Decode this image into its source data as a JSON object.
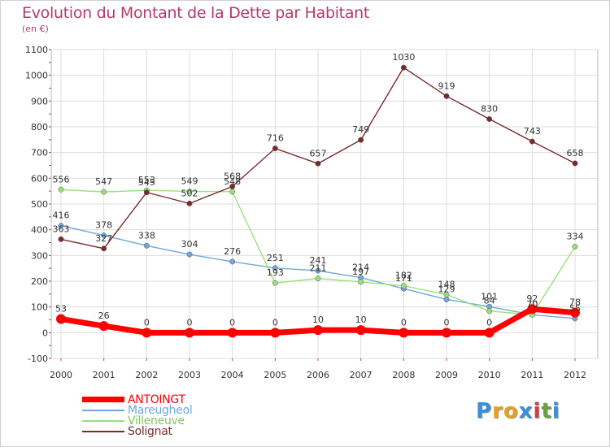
{
  "title": "Evolution du Montant de la Dette par Habitant",
  "subtitle": "(en €)",
  "logo": {
    "text": "Proxiti",
    "letters": [
      "P",
      "r",
      "o",
      "x",
      "i",
      "t",
      "i"
    ],
    "colors": [
      "#3a8fd8",
      "#e8a020",
      "#e8a020",
      "#3a8fd8",
      "#d04040",
      "#6aa040",
      "#3a8fd8"
    ]
  },
  "chart_data": {
    "type": "line",
    "title": "Evolution du Montant de la Dette par Habitant",
    "subtitle": "(en €)",
    "xlabel": "",
    "ylabel": "",
    "x": [
      "2000",
      "2001",
      "2002",
      "2003",
      "2004",
      "2005",
      "2006",
      "2007",
      "2008",
      "2009",
      "2010",
      "2011",
      "2012"
    ],
    "ylim": [
      -100,
      1100
    ],
    "yticks": [
      "-100",
      "0",
      "100",
      "200",
      "300",
      "400",
      "500",
      "600",
      "700",
      "800",
      "900",
      "1000",
      "1100"
    ],
    "grid": true,
    "legend_position": "bottom-left",
    "series": [
      {
        "name": "ANTOINGT",
        "color": "#ff0000",
        "values": [
          53,
          26,
          0,
          0,
          0,
          0,
          10,
          10,
          0,
          0,
          0,
          92,
          78
        ],
        "labels": [
          "53",
          "26",
          "0",
          "0",
          "0",
          "0",
          "10",
          "10",
          "0",
          "0",
          "0",
          "92",
          "78"
        ]
      },
      {
        "name": "Mareugheol",
        "color": "#6fa8dc",
        "values": [
          416,
          378,
          338,
          304,
          276,
          251,
          241,
          214,
          171,
          129,
          101,
          70,
          55
        ],
        "labels": [
          "416",
          "378",
          "338",
          "304",
          "276",
          "251",
          "241",
          "214",
          "171",
          "129",
          "101",
          "70",
          "55"
        ]
      },
      {
        "name": "Villeneuve",
        "color": "#99e07a",
        "values": [
          556,
          547,
          553,
          549,
          548,
          193,
          211,
          197,
          182,
          148,
          84,
          70,
          334
        ],
        "labels": [
          "556",
          "547",
          "553",
          "549",
          "548",
          "193",
          "211",
          "197",
          "182",
          "148",
          "84",
          "70",
          "334"
        ]
      },
      {
        "name": "Solignat",
        "color": "#7a2a2a",
        "values": [
          363,
          327,
          545,
          502,
          568,
          716,
          657,
          749,
          1030,
          919,
          830,
          743,
          658
        ],
        "labels": [
          "363",
          "327",
          "545",
          "502",
          "568",
          "716",
          "657",
          "749",
          "1030",
          "919",
          "830",
          "743",
          "658"
        ]
      }
    ]
  }
}
